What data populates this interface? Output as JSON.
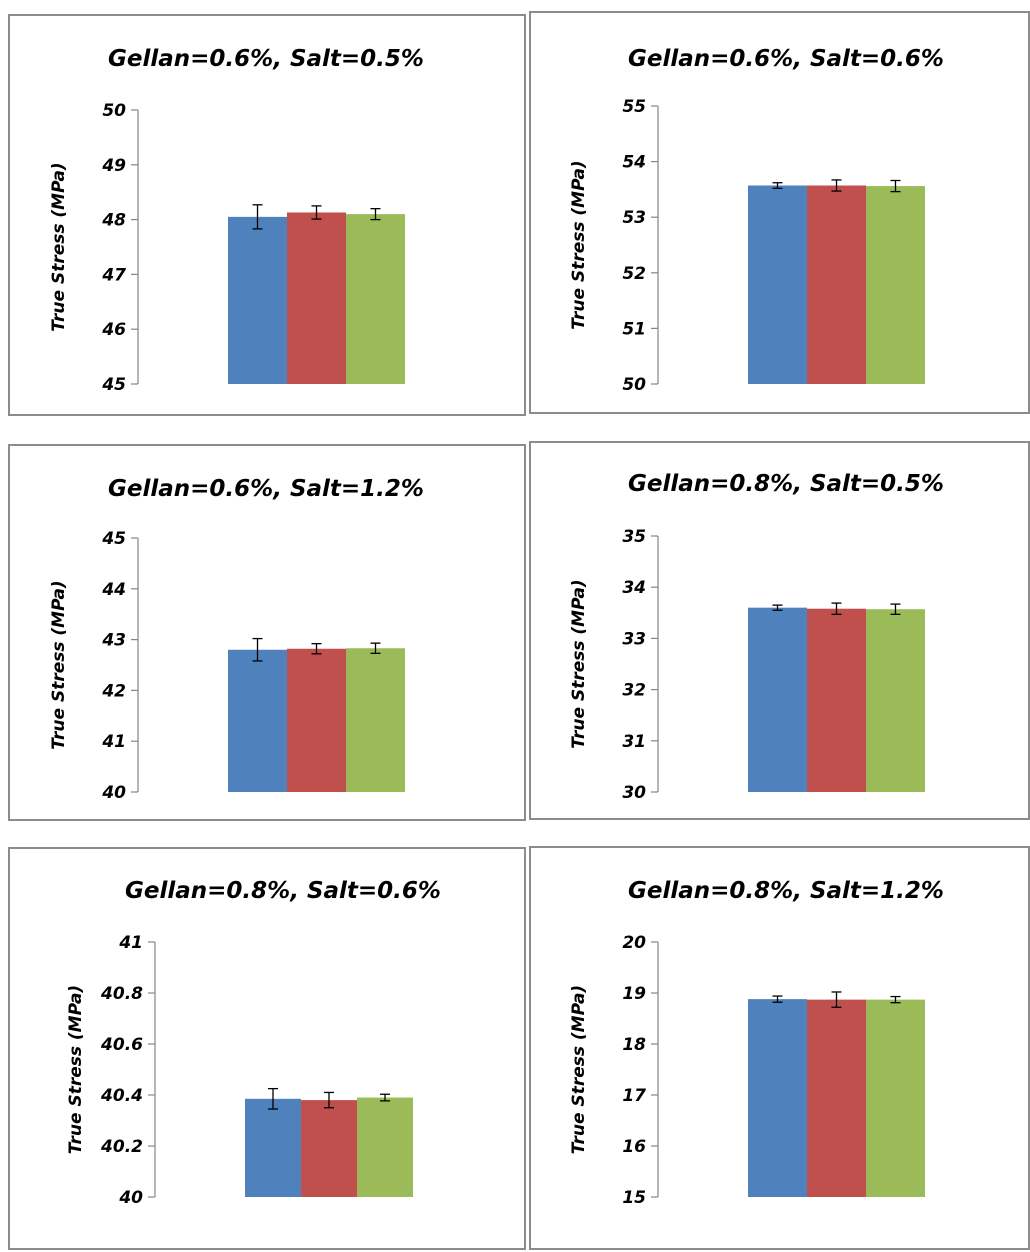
{
  "colors": {
    "series": [
      "#4f81bd",
      "#c0504d",
      "#9bbb59"
    ],
    "errorbar": "#000000",
    "axis": "#868686",
    "border": "#8c8c8c"
  },
  "chart_data": [
    {
      "type": "bar",
      "title": "Gellan=0.6%, Salt=0.5%",
      "ylabel": "True Stress (MPa)",
      "ylim": [
        45,
        50
      ],
      "yticks": [
        "45",
        "46",
        "47",
        "48",
        "49",
        "50"
      ],
      "tick_values": [
        45,
        46,
        47,
        48,
        49,
        50
      ],
      "values": [
        48.05,
        48.13,
        48.1
      ],
      "errors": [
        0.22,
        0.12,
        0.1
      ],
      "grid": false
    },
    {
      "type": "bar",
      "title": "Gellan=0.6%, Salt=0.6%",
      "ylabel": "True Stress (MPa)",
      "ylim": [
        50,
        55
      ],
      "yticks": [
        "50",
        "51",
        "52",
        "53",
        "54",
        "55"
      ],
      "tick_values": [
        50,
        51,
        52,
        53,
        54,
        55
      ],
      "values": [
        53.57,
        53.57,
        53.56
      ],
      "errors": [
        0.05,
        0.1,
        0.1
      ],
      "grid": false
    },
    {
      "type": "bar",
      "title": "Gellan=0.6%, Salt=1.2%",
      "ylabel": "True Stress (MPa)",
      "ylim": [
        40,
        45
      ],
      "yticks": [
        "40",
        "41",
        "42",
        "43",
        "44",
        "45"
      ],
      "tick_values": [
        40,
        41,
        42,
        43,
        44,
        45
      ],
      "values": [
        42.8,
        42.82,
        42.83
      ],
      "errors": [
        0.22,
        0.1,
        0.1
      ],
      "grid": false
    },
    {
      "type": "bar",
      "title": "Gellan=0.8%, Salt=0.5%",
      "ylabel": "True Stress (MPa)",
      "ylim": [
        30,
        35
      ],
      "yticks": [
        "30",
        "31",
        "32",
        "33",
        "34",
        "35"
      ],
      "tick_values": [
        30,
        31,
        32,
        33,
        34,
        35
      ],
      "values": [
        33.6,
        33.58,
        33.57
      ],
      "errors": [
        0.05,
        0.11,
        0.1
      ],
      "grid": false
    },
    {
      "type": "bar",
      "title": "Gellan=0.8%, Salt=0.6%",
      "ylabel": "True Stress (MPa)",
      "ylim": [
        40,
        41
      ],
      "yticks": [
        "40",
        "40.2",
        "40.4",
        "40.6",
        "40.8",
        "41"
      ],
      "tick_values": [
        40,
        40.2,
        40.4,
        40.6,
        40.8,
        41
      ],
      "values": [
        40.385,
        40.38,
        40.39
      ],
      "errors": [
        0.04,
        0.03,
        0.013
      ],
      "grid": false
    },
    {
      "type": "bar",
      "title": "Gellan=0.8%, Salt=1.2%",
      "ylabel": "True Stress (MPa)",
      "ylim": [
        15,
        20
      ],
      "yticks": [
        "15",
        "16",
        "17",
        "18",
        "19",
        "20"
      ],
      "tick_values": [
        15,
        16,
        17,
        18,
        19,
        20
      ],
      "values": [
        18.88,
        18.87,
        18.87
      ],
      "errors": [
        0.06,
        0.15,
        0.06
      ],
      "grid": false
    }
  ]
}
